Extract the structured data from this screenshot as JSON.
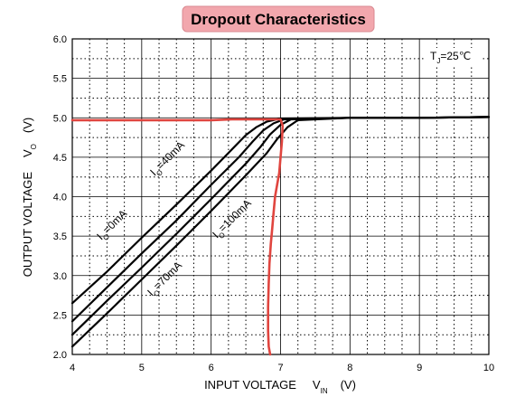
{
  "chart_data": {
    "type": "line",
    "title": "Dropout Characteristics",
    "xlabel": {
      "main": "INPUT VOLTAGE",
      "symbol": "V",
      "subscript": "IN",
      "unit": "(V)"
    },
    "ylabel": {
      "main": "OUTPUT VOLTAGE",
      "symbol": "V",
      "subscript": "O",
      "unit": "(V)"
    },
    "condition": {
      "symbol": "T",
      "subscript": "J",
      "value": "=25℃"
    },
    "xlim": [
      4,
      10
    ],
    "ylim": [
      2.0,
      6.0
    ],
    "x_ticks": [
      "4",
      "5",
      "6",
      "7",
      "8",
      "9",
      "10"
    ],
    "y_ticks": [
      "2.0",
      "2.5",
      "3.0",
      "3.5",
      "4.0",
      "4.5",
      "5.0",
      "5.5",
      "6.0"
    ],
    "grid": true,
    "series": [
      {
        "label_main": "I",
        "label_sub": "O",
        "label_value": "=0mA",
        "color": "#000000",
        "x": [
          4.0,
          4.5,
          5.0,
          5.5,
          6.0,
          6.3,
          6.5,
          6.65,
          6.8,
          7.0,
          8.0,
          9.0,
          10.0
        ],
        "y": [
          2.65,
          3.05,
          3.48,
          3.9,
          4.33,
          4.6,
          4.78,
          4.88,
          4.95,
          4.99,
          5.0,
          5.0,
          5.01
        ]
      },
      {
        "label_main": "I",
        "label_sub": "O",
        "label_value": "=40mA",
        "color": "#000000",
        "x": [
          4.0,
          4.5,
          5.0,
          5.5,
          6.0,
          6.4,
          6.6,
          6.75,
          6.9,
          7.05,
          8.0,
          9.0,
          10.0
        ],
        "y": [
          2.42,
          2.85,
          3.28,
          3.7,
          4.15,
          4.5,
          4.7,
          4.84,
          4.93,
          4.98,
          5.0,
          5.0,
          5.01
        ]
      },
      {
        "label_main": "I",
        "label_sub": "O",
        "label_value": "=70mA",
        "color": "#000000",
        "x": [
          4.0,
          4.5,
          5.0,
          5.5,
          6.0,
          6.5,
          6.7,
          6.85,
          7.0,
          7.15,
          8.0,
          9.0,
          10.0
        ],
        "y": [
          2.25,
          2.68,
          3.1,
          3.53,
          3.97,
          4.42,
          4.62,
          4.79,
          4.91,
          4.98,
          5.0,
          5.0,
          5.01
        ]
      },
      {
        "label_main": "I",
        "label_sub": "O",
        "label_value": "=100mA",
        "color": "#000000",
        "x": [
          4.0,
          4.5,
          5.0,
          5.5,
          6.0,
          6.5,
          6.8,
          6.95,
          7.1,
          7.25,
          8.0,
          9.0,
          10.0
        ],
        "y": [
          2.1,
          2.52,
          2.95,
          3.38,
          3.82,
          4.27,
          4.55,
          4.73,
          4.88,
          4.97,
          5.0,
          5.0,
          5.01
        ]
      },
      {
        "label_main": "",
        "label_sub": "",
        "label_value": "",
        "color": "#e0453f",
        "x": [
          4.0,
          5.0,
          6.0,
          6.3,
          6.6,
          6.85,
          7.0,
          7.03,
          7.02,
          7.0,
          6.98,
          6.95,
          6.92,
          6.9,
          6.88,
          6.86,
          6.84,
          6.83,
          6.82,
          6.82,
          6.83,
          6.85
        ],
        "y": [
          4.97,
          4.97,
          4.97,
          4.98,
          4.98,
          4.98,
          4.98,
          4.9,
          4.7,
          4.5,
          4.3,
          4.15,
          4.0,
          3.8,
          3.6,
          3.4,
          3.15,
          2.9,
          2.6,
          2.3,
          2.1,
          2.0
        ]
      }
    ]
  }
}
